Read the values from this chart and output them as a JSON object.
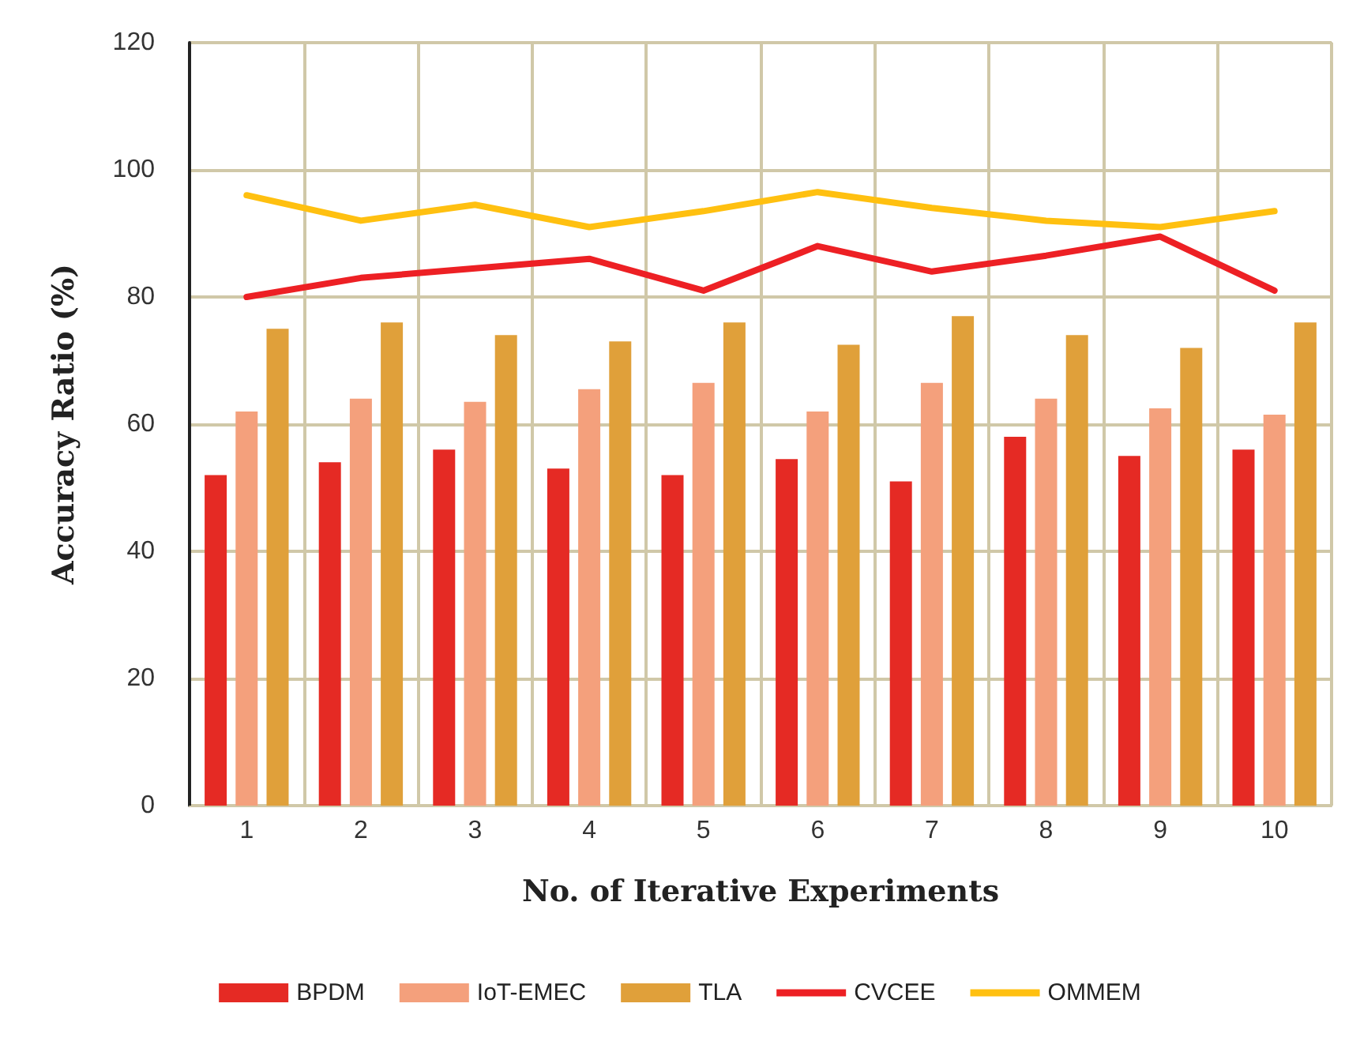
{
  "chart_data": {
    "type": "bar",
    "xlabel": "No. of Iterative Experiments",
    "ylabel": "Accuracy Ratio (%)",
    "categories": [
      "1",
      "2",
      "3",
      "4",
      "5",
      "6",
      "7",
      "8",
      "9",
      "10"
    ],
    "series": [
      {
        "name": "BPDM",
        "color": "#e52a24",
        "values": [
          52,
          54,
          56,
          53,
          52,
          54.5,
          51,
          58,
          55,
          56
        ]
      },
      {
        "name": "IoT-EMEC",
        "color": "#f4a07c",
        "values": [
          62,
          64,
          63.5,
          65.5,
          66.5,
          62,
          66.5,
          64,
          62.5,
          61.5
        ]
      },
      {
        "name": "TLA",
        "color": "#e0a03a",
        "values": [
          75,
          76,
          74,
          73,
          76,
          72.5,
          77,
          74,
          72,
          76
        ]
      },
      {
        "name": "CVCEE",
        "type": "line",
        "color": "#ed2024",
        "values": [
          80,
          83,
          84.5,
          86,
          81,
          88,
          84,
          86.5,
          89.5,
          81
        ]
      },
      {
        "name": "OMMEM",
        "type": "line",
        "color": "#ffc010",
        "values": [
          96,
          92,
          94.5,
          91,
          93.5,
          96.5,
          94,
          92,
          91,
          93.5
        ]
      }
    ],
    "ylim": [
      0,
      120
    ],
    "yticks": [
      0,
      20,
      40,
      60,
      80,
      100,
      120
    ],
    "grid": true,
    "legend": "bottom",
    "marker": "none"
  }
}
